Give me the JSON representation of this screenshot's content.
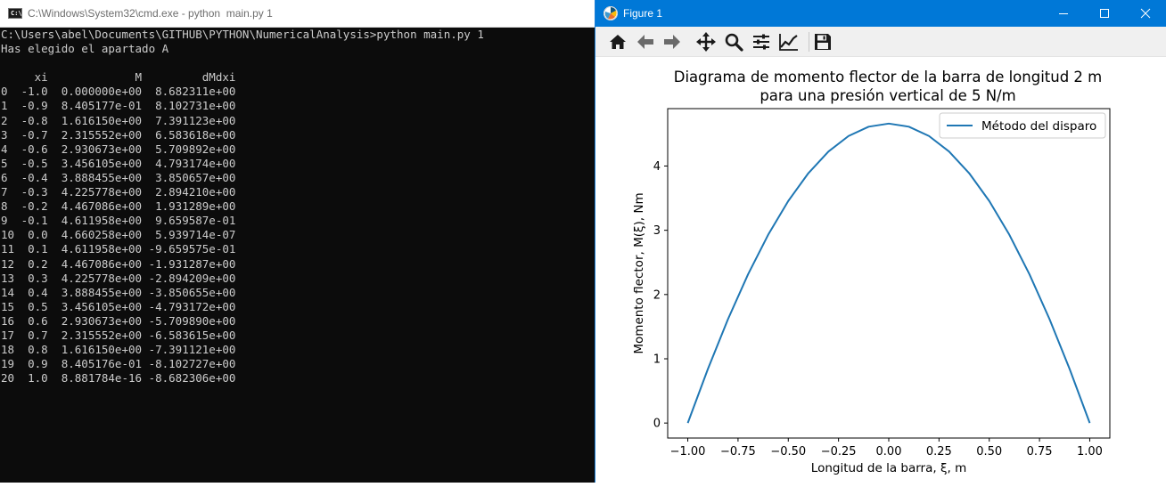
{
  "cmd_window": {
    "title": "C:\\Windows\\System32\\cmd.exe - python  main.py 1",
    "icon_text": "C:\\",
    "lines": [
      "C:\\Users\\abel\\Documents\\GITHUB\\PYTHON\\NumericalAnalysis>python main.py 1",
      "Has elegido el apartado A",
      "",
      "     xi             M         dMdxi",
      "0  -1.0  0.000000e+00  8.682311e+00",
      "1  -0.9  8.405177e-01  8.102731e+00",
      "2  -0.8  1.616150e+00  7.391123e+00",
      "3  -0.7  2.315552e+00  6.583618e+00",
      "4  -0.6  2.930673e+00  5.709892e+00",
      "5  -0.5  3.456105e+00  4.793174e+00",
      "6  -0.4  3.888455e+00  3.850657e+00",
      "7  -0.3  4.225778e+00  2.894210e+00",
      "8  -0.2  4.467086e+00  1.931289e+00",
      "9  -0.1  4.611958e+00  9.659587e-01",
      "10  0.0  4.660258e+00  5.939714e-07",
      "11  0.1  4.611958e+00 -9.659575e-01",
      "12  0.2  4.467086e+00 -1.931287e+00",
      "13  0.3  4.225778e+00 -2.894209e+00",
      "14  0.4  3.888455e+00 -3.850655e+00",
      "15  0.5  3.456105e+00 -4.793172e+00",
      "16  0.6  2.930673e+00 -5.709890e+00",
      "17  0.7  2.315552e+00 -6.583615e+00",
      "18  0.8  1.616150e+00 -7.391121e+00",
      "19  0.9  8.405176e-01 -8.102727e+00",
      "20  1.0  8.881784e-16 -8.682306e+00"
    ]
  },
  "figure_window": {
    "title": "Figure 1",
    "controls": {
      "minimize": "—",
      "maximize": "☐",
      "close": "✕"
    },
    "toolbar": [
      "home-icon",
      "back-icon",
      "forward-icon",
      "pan-icon",
      "zoom-icon",
      "configure-subplots-icon",
      "edit-axis-icon",
      "save-icon"
    ],
    "colors": {
      "titlebar": "#0078d7",
      "line": "#1f77b4"
    }
  },
  "chart_data": {
    "type": "line",
    "title_line1": "Diagrama de momento flector de la barra de longitud 2 m",
    "title_line2": "para una presión vertical de 5 N/m",
    "xlabel": "Longitud de la barra, ξ, m",
    "ylabel": "Momento flector, M(ξ), Nm",
    "xlim": [
      -1.1,
      1.1
    ],
    "ylim": [
      -0.2333,
      4.8933
    ],
    "xticks": [
      -1.0,
      -0.75,
      -0.5,
      -0.25,
      0.0,
      0.25,
      0.5,
      0.75,
      1.0
    ],
    "xtick_labels": [
      "−1.00",
      "−0.75",
      "−0.50",
      "−0.25",
      "0.00",
      "0.25",
      "0.50",
      "0.75",
      "1.00"
    ],
    "yticks": [
      0,
      1,
      2,
      3,
      4
    ],
    "ytick_labels": [
      "0",
      "1",
      "2",
      "3",
      "4"
    ],
    "legend_position": "top-right",
    "grid": false,
    "series": [
      {
        "name": "Método del disparo",
        "color": "#1f77b4",
        "x": [
          -1.0,
          -0.9,
          -0.8,
          -0.7,
          -0.6,
          -0.5,
          -0.4,
          -0.3,
          -0.2,
          -0.1,
          0.0,
          0.1,
          0.2,
          0.3,
          0.4,
          0.5,
          0.6,
          0.7,
          0.8,
          0.9,
          1.0
        ],
        "y": [
          0.0,
          0.8405177,
          1.61615,
          2.315552,
          2.930673,
          3.456105,
          3.888455,
          4.225778,
          4.467086,
          4.611958,
          4.660258,
          4.611958,
          4.467086,
          4.225778,
          3.888455,
          3.456105,
          2.930673,
          2.315552,
          1.61615,
          0.8405176,
          0.0
        ]
      }
    ]
  }
}
